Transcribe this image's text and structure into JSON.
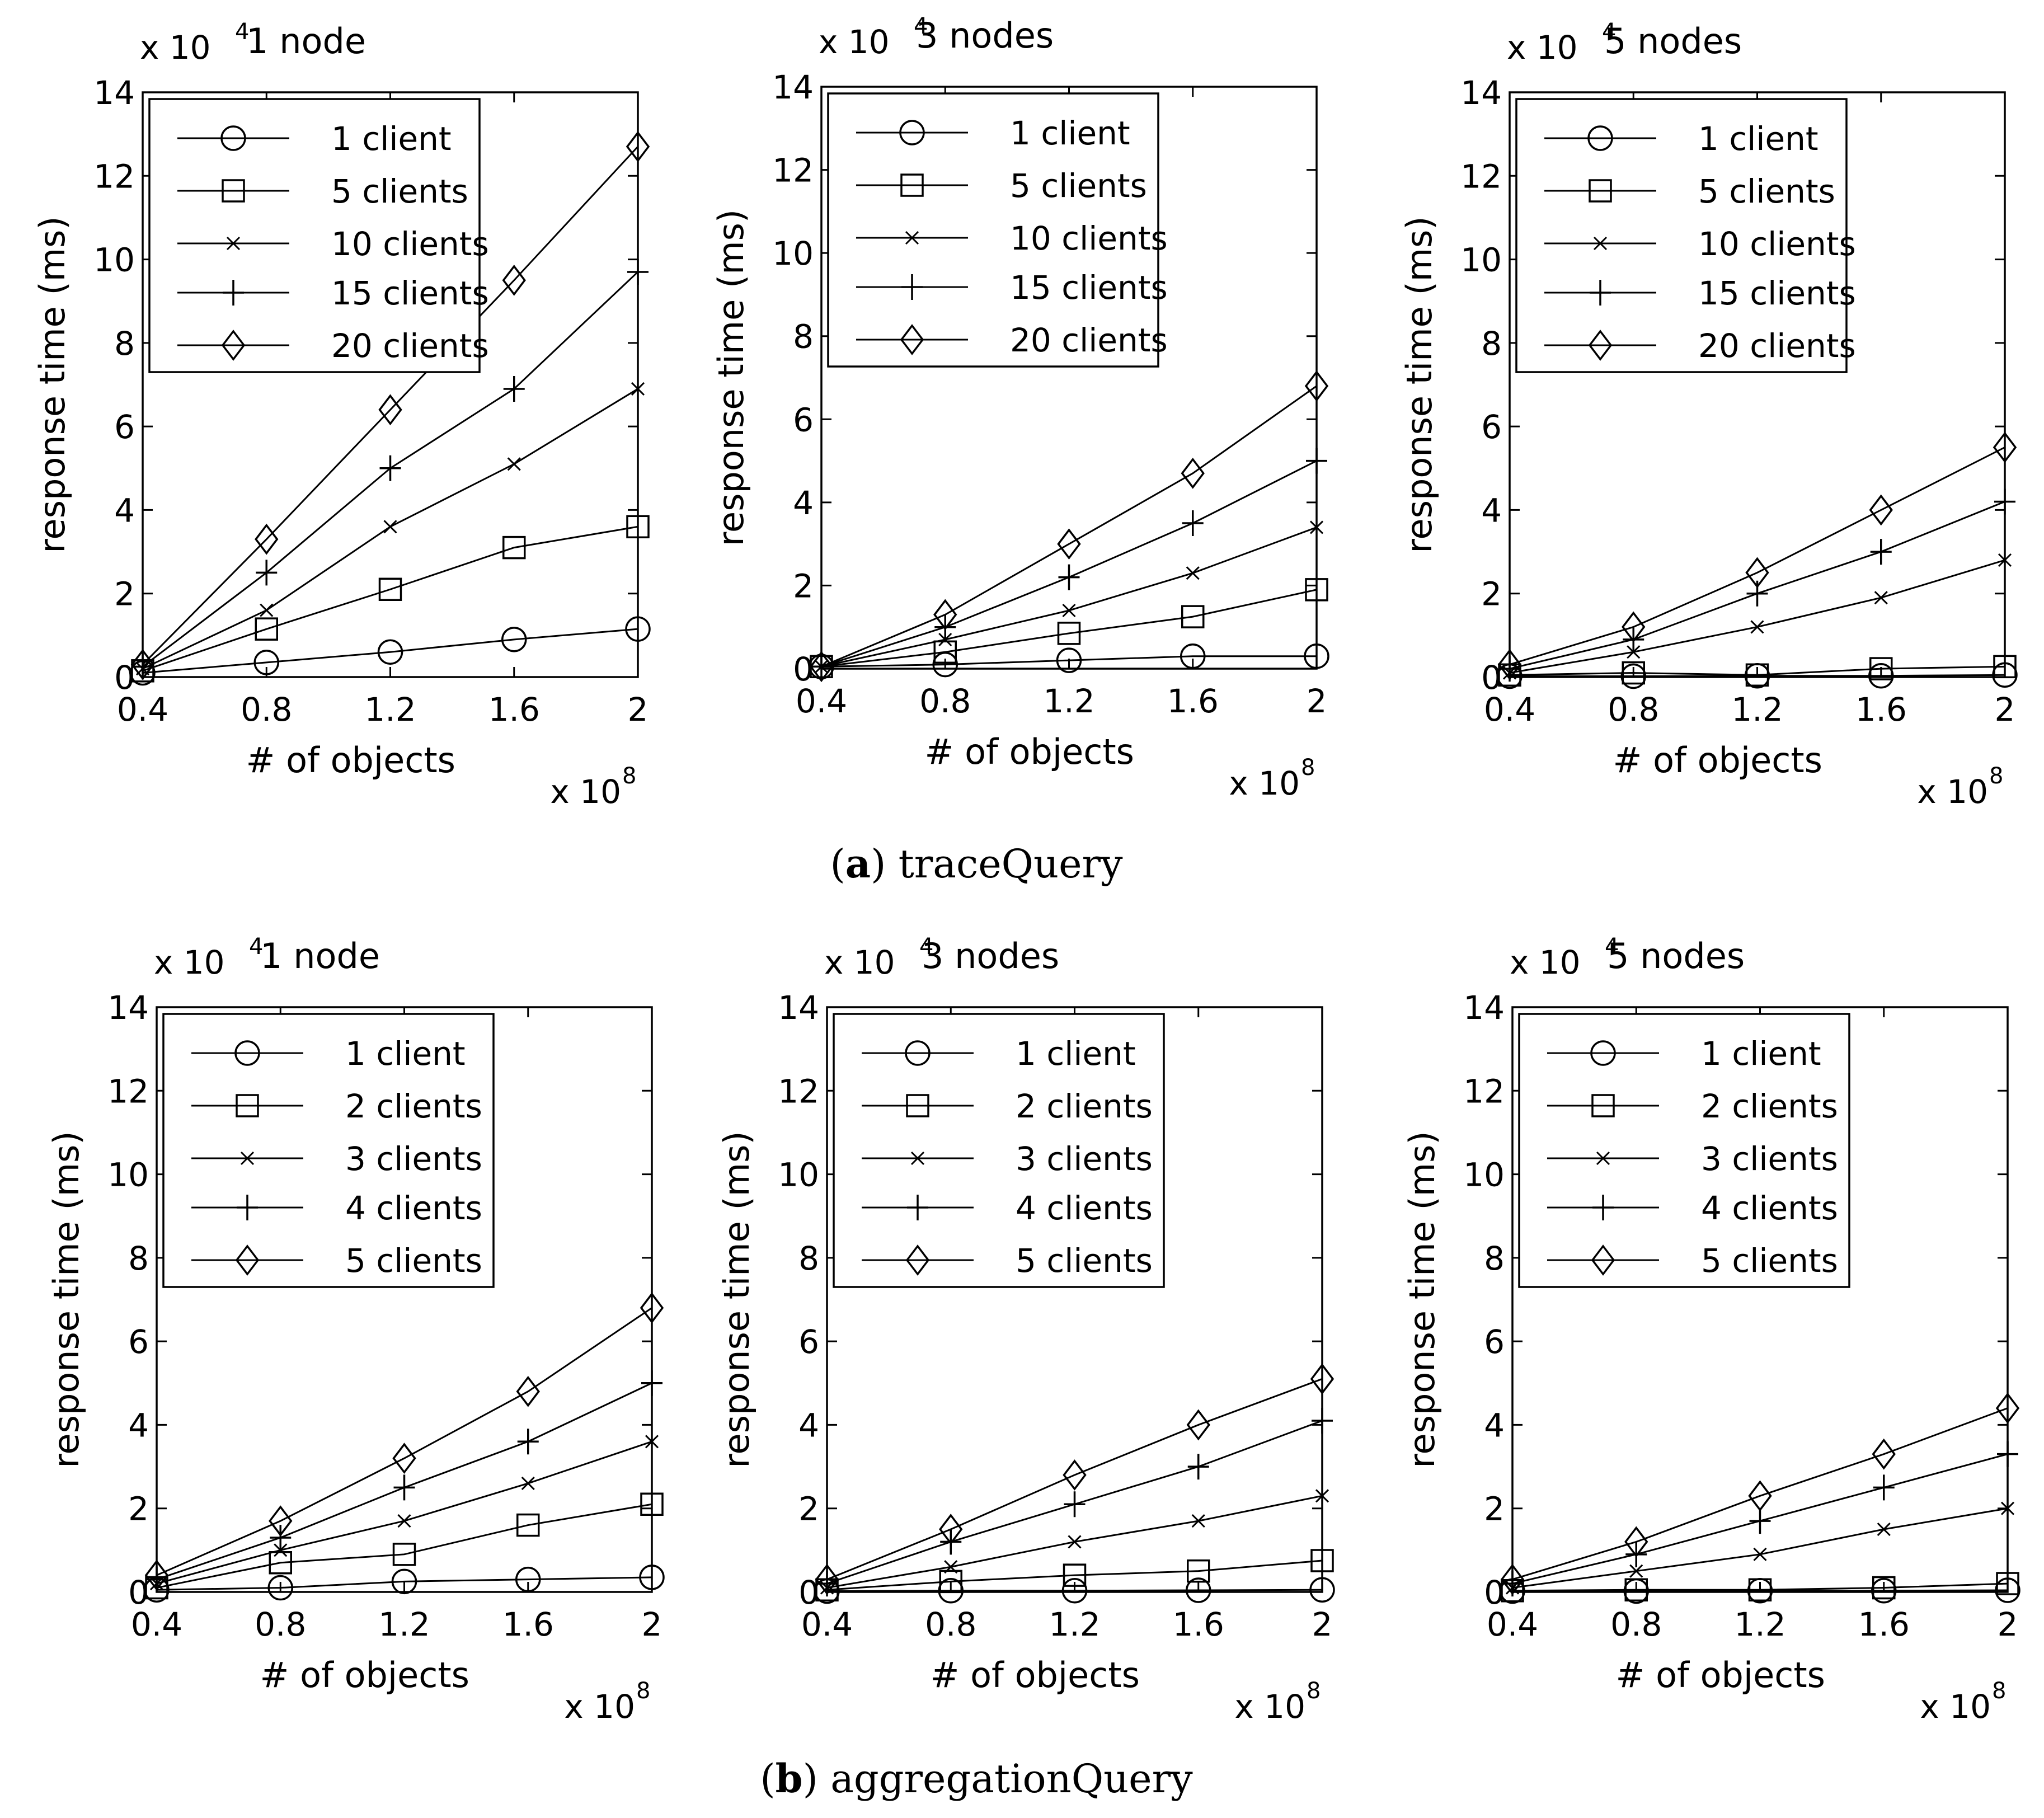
{
  "figure": {
    "captions": [
      {
        "letter": "a",
        "text": " traceQuery"
      },
      {
        "letter": "b",
        "text": " aggregationQuery"
      }
    ]
  },
  "chart_data": [
    {
      "type": "line",
      "group": "a",
      "title": "1 node",
      "xlabel": "# of objects",
      "ylabel": "response time (ms)",
      "x_multiplier": "x 10",
      "x_exponent": "8",
      "y_multiplier": "x 10",
      "y_exponent": "4",
      "x": [
        0.4,
        0.8,
        1.2,
        1.6,
        2
      ],
      "x_ticks": [
        "0.4",
        "0.8",
        "1.2",
        "1.6",
        "2"
      ],
      "y_ticks": [
        "0",
        "2",
        "4",
        "6",
        "8",
        "10",
        "12",
        "14"
      ],
      "xlim": [
        0.4,
        2
      ],
      "ylim": [
        0,
        14
      ],
      "legend_position": "top-left",
      "series": [
        {
          "name": "1 client",
          "marker": "circle",
          "values": [
            0.1,
            0.35,
            0.6,
            0.9,
            1.15
          ]
        },
        {
          "name": "5 clients",
          "marker": "square",
          "values": [
            0.15,
            1.15,
            2.1,
            3.1,
            3.6
          ]
        },
        {
          "name": "10 clients",
          "marker": "x",
          "values": [
            0.2,
            1.6,
            3.6,
            5.1,
            6.9
          ]
        },
        {
          "name": "15 clients",
          "marker": "plus",
          "values": [
            0.25,
            2.5,
            5.0,
            6.9,
            9.7
          ]
        },
        {
          "name": "20 clients",
          "marker": "diamond",
          "values": [
            0.3,
            3.3,
            6.4,
            9.5,
            12.7
          ]
        }
      ]
    },
    {
      "type": "line",
      "group": "a",
      "title": "3 nodes",
      "xlabel": "# of objects",
      "ylabel": "response time (ms)",
      "x_multiplier": "x 10",
      "x_exponent": "8",
      "y_multiplier": "x 10",
      "y_exponent": "4",
      "x": [
        0.4,
        0.8,
        1.2,
        1.6,
        2
      ],
      "x_ticks": [
        "0.4",
        "0.8",
        "1.2",
        "1.6",
        "2"
      ],
      "y_ticks": [
        "0",
        "2",
        "4",
        "6",
        "8",
        "10",
        "12",
        "14"
      ],
      "xlim": [
        0.4,
        2
      ],
      "ylim": [
        0,
        14
      ],
      "legend_position": "top-left",
      "series": [
        {
          "name": "1 client",
          "marker": "circle",
          "values": [
            0.05,
            0.1,
            0.2,
            0.3,
            0.3
          ]
        },
        {
          "name": "5 clients",
          "marker": "square",
          "values": [
            0.05,
            0.4,
            0.85,
            1.25,
            1.9
          ]
        },
        {
          "name": "10 clients",
          "marker": "x",
          "values": [
            0.05,
            0.7,
            1.4,
            2.3,
            3.4
          ]
        },
        {
          "name": "15 clients",
          "marker": "plus",
          "values": [
            0.05,
            1.0,
            2.2,
            3.5,
            5.0
          ]
        },
        {
          "name": "20 clients",
          "marker": "diamond",
          "values": [
            0.05,
            1.3,
            3.0,
            4.7,
            6.8
          ]
        }
      ]
    },
    {
      "type": "line",
      "group": "a",
      "title": "5 nodes",
      "xlabel": "# of objects",
      "ylabel": "response time (ms)",
      "x_multiplier": "x 10",
      "x_exponent": "8",
      "y_multiplier": "x 10",
      "y_exponent": "4",
      "x": [
        0.4,
        0.8,
        1.2,
        1.6,
        2
      ],
      "x_ticks": [
        "0.4",
        "0.8",
        "1.2",
        "1.6",
        "2"
      ],
      "y_ticks": [
        "0",
        "2",
        "4",
        "6",
        "8",
        "10",
        "12",
        "14"
      ],
      "xlim": [
        0.4,
        2
      ],
      "ylim": [
        0,
        14
      ],
      "legend_position": "top-left",
      "series": [
        {
          "name": "1 client",
          "marker": "circle",
          "values": [
            0.02,
            0.02,
            0.03,
            0.03,
            0.05
          ]
        },
        {
          "name": "5 clients",
          "marker": "square",
          "values": [
            0.05,
            0.1,
            0.05,
            0.2,
            0.25
          ]
        },
        {
          "name": "10 clients",
          "marker": "x",
          "values": [
            0.1,
            0.6,
            1.2,
            1.9,
            2.8
          ]
        },
        {
          "name": "15 clients",
          "marker": "plus",
          "values": [
            0.2,
            0.9,
            2.0,
            3.0,
            4.2
          ]
        },
        {
          "name": "20 clients",
          "marker": "diamond",
          "values": [
            0.3,
            1.2,
            2.5,
            4.0,
            5.5
          ]
        }
      ]
    },
    {
      "type": "line",
      "group": "b",
      "title": "1 node",
      "xlabel": "# of objects",
      "ylabel": "response time (ms)",
      "x_multiplier": "x 10",
      "x_exponent": "8",
      "y_multiplier": "x 10",
      "y_exponent": "4",
      "x": [
        0.4,
        0.8,
        1.2,
        1.6,
        2
      ],
      "x_ticks": [
        "0.4",
        "0.8",
        "1.2",
        "1.6",
        "2"
      ],
      "y_ticks": [
        "0",
        "2",
        "4",
        "6",
        "8",
        "10",
        "12",
        "14"
      ],
      "xlim": [
        0.4,
        2
      ],
      "ylim": [
        0,
        14
      ],
      "legend_position": "top-left",
      "series": [
        {
          "name": "1 client",
          "marker": "circle",
          "values": [
            0.05,
            0.1,
            0.25,
            0.3,
            0.35
          ]
        },
        {
          "name": "2 clients",
          "marker": "square",
          "values": [
            0.1,
            0.7,
            0.9,
            1.6,
            2.1
          ]
        },
        {
          "name": "3 clients",
          "marker": "x",
          "values": [
            0.2,
            1.0,
            1.7,
            2.6,
            3.6
          ]
        },
        {
          "name": "4 clients",
          "marker": "plus",
          "values": [
            0.3,
            1.3,
            2.5,
            3.6,
            5.0
          ]
        },
        {
          "name": "5 clients",
          "marker": "diamond",
          "values": [
            0.4,
            1.7,
            3.2,
            4.8,
            6.8
          ]
        }
      ]
    },
    {
      "type": "line",
      "group": "b",
      "title": "3 nodes",
      "xlabel": "# of objects",
      "ylabel": "response time (ms)",
      "x_multiplier": "x 10",
      "x_exponent": "8",
      "y_multiplier": "x 10",
      "y_exponent": "4",
      "x": [
        0.4,
        0.8,
        1.2,
        1.6,
        2
      ],
      "x_ticks": [
        "0.4",
        "0.8",
        "1.2",
        "1.6",
        "2"
      ],
      "y_ticks": [
        "0",
        "2",
        "4",
        "6",
        "8",
        "10",
        "12",
        "14"
      ],
      "xlim": [
        0.4,
        2
      ],
      "ylim": [
        0,
        14
      ],
      "legend_position": "top-left",
      "series": [
        {
          "name": "1 client",
          "marker": "circle",
          "values": [
            0.02,
            0.03,
            0.03,
            0.04,
            0.05
          ]
        },
        {
          "name": "2 clients",
          "marker": "square",
          "values": [
            0.05,
            0.25,
            0.4,
            0.5,
            0.75
          ]
        },
        {
          "name": "3 clients",
          "marker": "x",
          "values": [
            0.1,
            0.6,
            1.2,
            1.7,
            2.3
          ]
        },
        {
          "name": "4 clients",
          "marker": "plus",
          "values": [
            0.2,
            1.2,
            2.1,
            3.0,
            4.1
          ]
        },
        {
          "name": "5 clients",
          "marker": "diamond",
          "values": [
            0.3,
            1.5,
            2.8,
            4.0,
            5.1
          ]
        }
      ]
    },
    {
      "type": "line",
      "group": "b",
      "title": "5 nodes",
      "xlabel": "# of objects",
      "ylabel": "response time (ms)",
      "x_multiplier": "x 10",
      "x_exponent": "8",
      "y_multiplier": "x 10",
      "y_exponent": "4",
      "x": [
        0.4,
        0.8,
        1.2,
        1.6,
        2
      ],
      "x_ticks": [
        "0.4",
        "0.8",
        "1.2",
        "1.6",
        "2"
      ],
      "y_ticks": [
        "0",
        "2",
        "4",
        "6",
        "8",
        "10",
        "12",
        "14"
      ],
      "xlim": [
        0.4,
        2
      ],
      "ylim": [
        0,
        14
      ],
      "legend_position": "top-left",
      "series": [
        {
          "name": "1 client",
          "marker": "circle",
          "values": [
            0.02,
            0.02,
            0.03,
            0.03,
            0.04
          ]
        },
        {
          "name": "2 clients",
          "marker": "square",
          "values": [
            0.03,
            0.05,
            0.05,
            0.1,
            0.2
          ]
        },
        {
          "name": "3 clients",
          "marker": "x",
          "values": [
            0.1,
            0.5,
            0.9,
            1.5,
            2.0
          ]
        },
        {
          "name": "4 clients",
          "marker": "plus",
          "values": [
            0.2,
            0.9,
            1.7,
            2.5,
            3.3
          ]
        },
        {
          "name": "5 clients",
          "marker": "diamond",
          "values": [
            0.3,
            1.2,
            2.3,
            3.3,
            4.4
          ]
        }
      ]
    }
  ]
}
